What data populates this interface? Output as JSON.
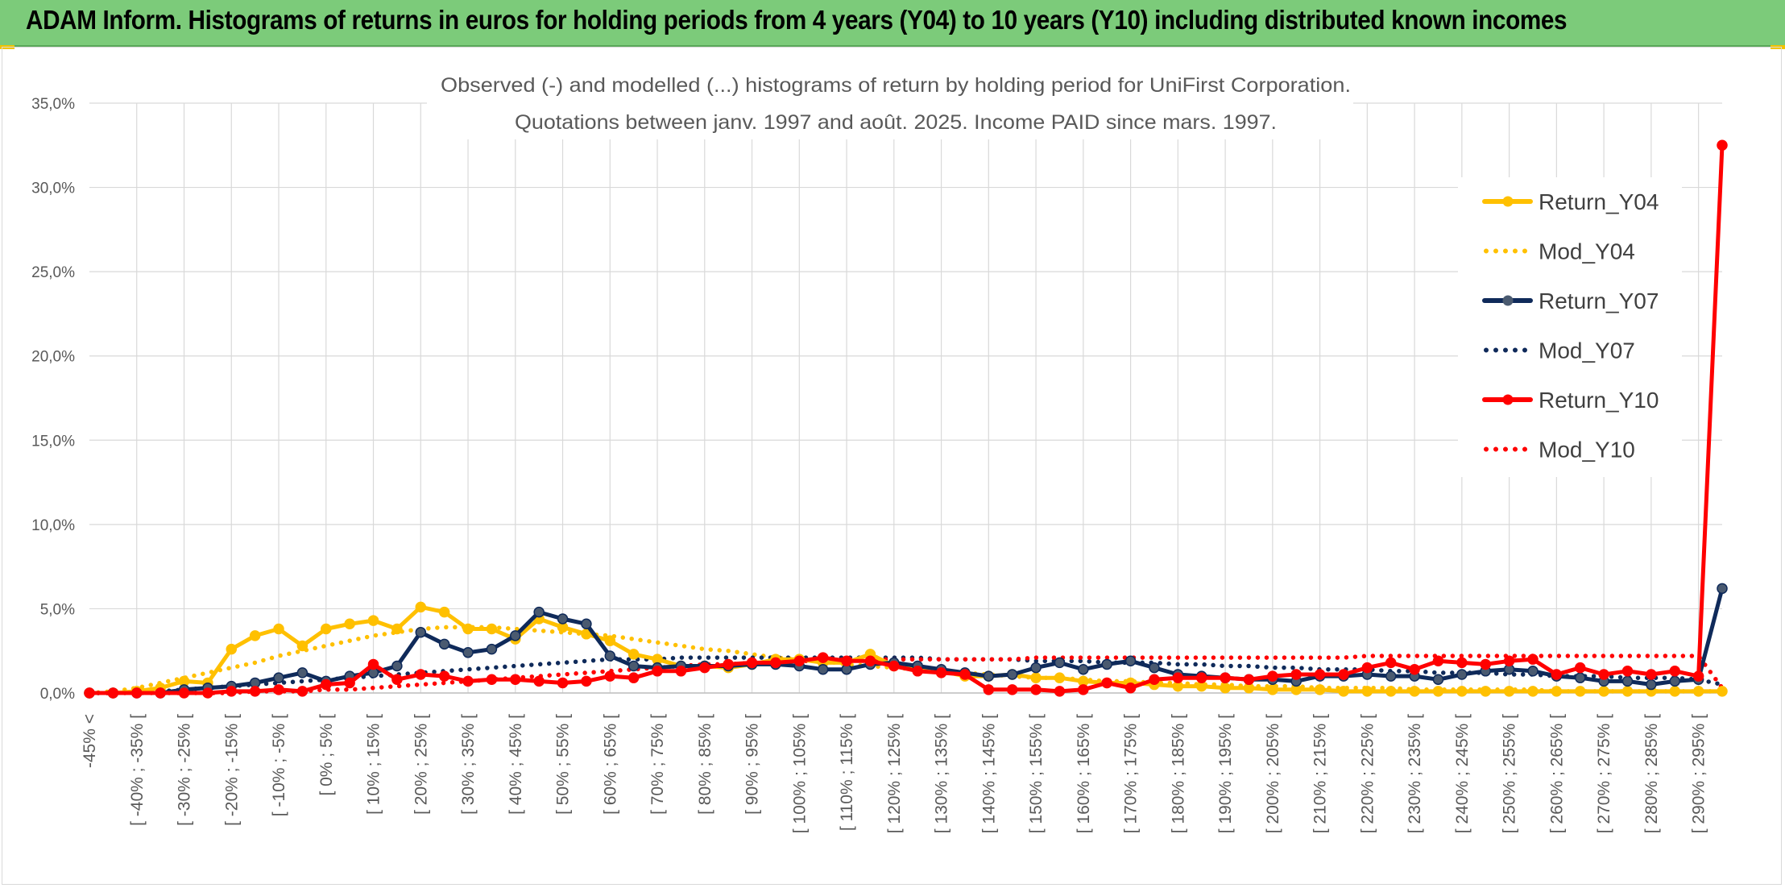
{
  "header": {
    "title": "ADAM Inform. Histograms of returns in euros for holding periods from 4 years (Y04) to 10 years (Y10) including distributed known incomes"
  },
  "colors": {
    "banner": "#7ccb7a",
    "y04": "#ffc000",
    "y07": "#0f2a5a",
    "y10": "#ff0000",
    "grid": "#d9d9d9",
    "axis_text": "#595959"
  },
  "chart_data": {
    "type": "line",
    "title": "Observed (-) and modelled (...) histograms of return by holding period for UniFirst Corporation.",
    "subtitle": "Quotations between janv. 1997 and août. 2025. Income PAID since mars. 1997.",
    "ylim": [
      0,
      35
    ],
    "y_ticks": [
      "0,0%",
      "5,0%",
      "10,0%",
      "15,0%",
      "20,0%",
      "25,0%",
      "30,0%",
      "35,0%"
    ],
    "x_tick_labels": [
      "-45% <",
      "[ -40% ; -35% [",
      "[ -30% ; -25% [",
      "[ -20% ; -15% [",
      "[ -10% ; -5% [",
      "[ 0% ; 5% [",
      "[ 10% ; 15% [",
      "[ 20% ; 25% [",
      "[ 30% ; 35% [",
      "[ 40% ; 45% [",
      "[ 50% ; 55% [",
      "[ 60% ; 65% [",
      "[ 70% ; 75% [",
      "[ 80% ; 85% [",
      "[ 90% ; 95% [",
      "[ 100% ; 105% [",
      "[ 110% ; 115% [",
      "[ 120% ; 125% [",
      "[ 130% ; 135% [",
      "[ 140% ; 145% [",
      "[ 150% ; 155% [",
      "[ 160% ; 165% [",
      "[ 170% ; 175% [",
      "[ 180% ; 185% [",
      "[ 190% ; 195% [",
      "[ 200% ; 205% [",
      "[ 210% ; 215% [",
      "[ 220% ; 225% [",
      "[ 230% ; 235% [",
      "[ 240% ; 245% [",
      "[ 250% ; 255% [",
      "[ 260% ; 265% [",
      "[ 270% ; 275% [",
      "[ 280% ; 285% [",
      "[ 290% ; 295% ["
    ],
    "legend_position": "right",
    "grid": true,
    "series": [
      {
        "name": "Return_Y04",
        "style": "solid",
        "color": "#ffc000",
        "values": [
          0,
          0,
          0.1,
          0.3,
          0.7,
          0.6,
          2.6,
          3.4,
          3.8,
          2.8,
          3.8,
          4.1,
          4.3,
          3.8,
          5.1,
          4.8,
          3.8,
          3.8,
          3.2,
          4.4,
          3.9,
          3.5,
          3.1,
          2.3,
          2.0,
          1.6,
          1.6,
          1.5,
          1.7,
          2.0,
          2.0,
          1.8,
          1.8,
          2.3,
          1.6,
          1.5,
          1.3,
          1.0,
          1.0,
          1.1,
          0.9,
          0.9,
          0.7,
          0.6,
          0.6,
          0.5,
          0.4,
          0.4,
          0.3,
          0.3,
          0.2,
          0.2,
          0.2,
          0.1,
          0.1,
          0.1,
          0.1,
          0.1,
          0.1,
          0.1,
          0.1,
          0.1,
          0.1,
          0.1,
          0.1,
          0.1,
          0.1,
          0.1,
          0.1,
          0.1
        ]
      },
      {
        "name": "Mod_Y04",
        "style": "dotted",
        "color": "#ffc000",
        "values": [
          0,
          0.1,
          0.3,
          0.6,
          0.9,
          1.2,
          1.5,
          1.8,
          2.2,
          2.5,
          2.8,
          3.1,
          3.4,
          3.6,
          3.8,
          3.9,
          3.9,
          3.9,
          3.8,
          3.7,
          3.6,
          3.5,
          3.4,
          3.2,
          3.0,
          2.8,
          2.6,
          2.5,
          2.3,
          2.1,
          2.0,
          1.9,
          1.7,
          1.6,
          1.5,
          1.4,
          1.3,
          1.2,
          1.1,
          1.0,
          0.9,
          0.9,
          0.8,
          0.7,
          0.7,
          0.6,
          0.6,
          0.5,
          0.5,
          0.4,
          0.4,
          0.4,
          0.3,
          0.3,
          0.3,
          0.3,
          0.2,
          0.2,
          0.2,
          0.2,
          0.2,
          0.2,
          0.1,
          0.1,
          0.1,
          0.1,
          0.1,
          0.1,
          0.1,
          0.1
        ]
      },
      {
        "name": "Return_Y07",
        "style": "solid",
        "color": "#0f2a5a",
        "values": [
          0,
          0,
          0,
          0,
          0.2,
          0.3,
          0.4,
          0.6,
          0.9,
          1.2,
          0.7,
          1.0,
          1.2,
          1.6,
          3.6,
          2.9,
          2.4,
          2.6,
          3.4,
          4.8,
          4.4,
          4.1,
          2.2,
          1.6,
          1.5,
          1.6,
          1.6,
          1.6,
          1.7,
          1.7,
          1.6,
          1.4,
          1.4,
          1.7,
          1.8,
          1.6,
          1.4,
          1.2,
          1.0,
          1.1,
          1.5,
          1.8,
          1.4,
          1.7,
          1.9,
          1.5,
          1.1,
          1.0,
          0.9,
          0.8,
          0.8,
          0.7,
          1.0,
          1.0,
          1.1,
          1.0,
          1.0,
          0.8,
          1.1,
          1.3,
          1.4,
          1.3,
          1.0,
          0.9,
          0.7,
          0.7,
          0.5,
          0.7,
          0.8,
          6.2
        ]
      },
      {
        "name": "Mod_Y07",
        "style": "dotted",
        "color": "#0f2a5a",
        "values": [
          0,
          0,
          0.1,
          0.1,
          0.2,
          0.3,
          0.4,
          0.5,
          0.6,
          0.7,
          0.8,
          0.9,
          1.0,
          1.1,
          1.2,
          1.3,
          1.4,
          1.5,
          1.6,
          1.7,
          1.8,
          1.9,
          2.0,
          2.0,
          2.0,
          2.1,
          2.1,
          2.1,
          2.1,
          2.1,
          2.1,
          2.1,
          2.1,
          2.1,
          2.1,
          2.1,
          2.0,
          2.0,
          2.0,
          2.0,
          1.9,
          1.9,
          1.9,
          1.8,
          1.8,
          1.8,
          1.7,
          1.7,
          1.6,
          1.6,
          1.5,
          1.5,
          1.4,
          1.4,
          1.4,
          1.3,
          1.3,
          1.2,
          1.2,
          1.2,
          1.1,
          1.1,
          1.0,
          1.0,
          1.0,
          0.9,
          0.9,
          0.9,
          0.8,
          0.5
        ]
      },
      {
        "name": "Return_Y10",
        "style": "solid",
        "color": "#ff0000",
        "values": [
          0,
          0,
          0,
          0,
          0,
          0,
          0.1,
          0.1,
          0.2,
          0.1,
          0.5,
          0.6,
          1.7,
          0.8,
          1.1,
          1.0,
          0.7,
          0.8,
          0.8,
          0.7,
          0.6,
          0.7,
          1.0,
          0.9,
          1.3,
          1.3,
          1.5,
          1.7,
          1.8,
          1.8,
          1.9,
          2.1,
          1.9,
          1.9,
          1.6,
          1.3,
          1.2,
          1.1,
          0.2,
          0.2,
          0.2,
          0.1,
          0.2,
          0.6,
          0.3,
          0.8,
          0.9,
          0.9,
          0.9,
          0.8,
          1.0,
          1.1,
          1.1,
          1.1,
          1.5,
          1.8,
          1.4,
          1.9,
          1.8,
          1.7,
          1.9,
          2.0,
          1.1,
          1.5,
          1.1,
          1.3,
          1.1,
          1.3,
          1.0,
          32.5
        ]
      },
      {
        "name": "Mod_Y10",
        "style": "dotted",
        "color": "#ff0000",
        "values": [
          0,
          0,
          0,
          0,
          0,
          0,
          0,
          0.1,
          0.1,
          0.1,
          0.2,
          0.2,
          0.3,
          0.4,
          0.5,
          0.6,
          0.7,
          0.8,
          0.9,
          1.0,
          1.1,
          1.2,
          1.3,
          1.4,
          1.5,
          1.6,
          1.7,
          1.7,
          1.8,
          1.8,
          1.9,
          1.9,
          2.0,
          2.0,
          2.0,
          2.0,
          2.0,
          2.0,
          2.0,
          2.0,
          2.1,
          2.1,
          2.1,
          2.1,
          2.1,
          2.1,
          2.1,
          2.1,
          2.1,
          2.1,
          2.1,
          2.1,
          2.1,
          2.1,
          2.2,
          2.2,
          2.2,
          2.2,
          2.2,
          2.2,
          2.2,
          2.2,
          2.2,
          2.2,
          2.2,
          2.2,
          2.2,
          2.2,
          2.2,
          0.3
        ]
      }
    ]
  }
}
